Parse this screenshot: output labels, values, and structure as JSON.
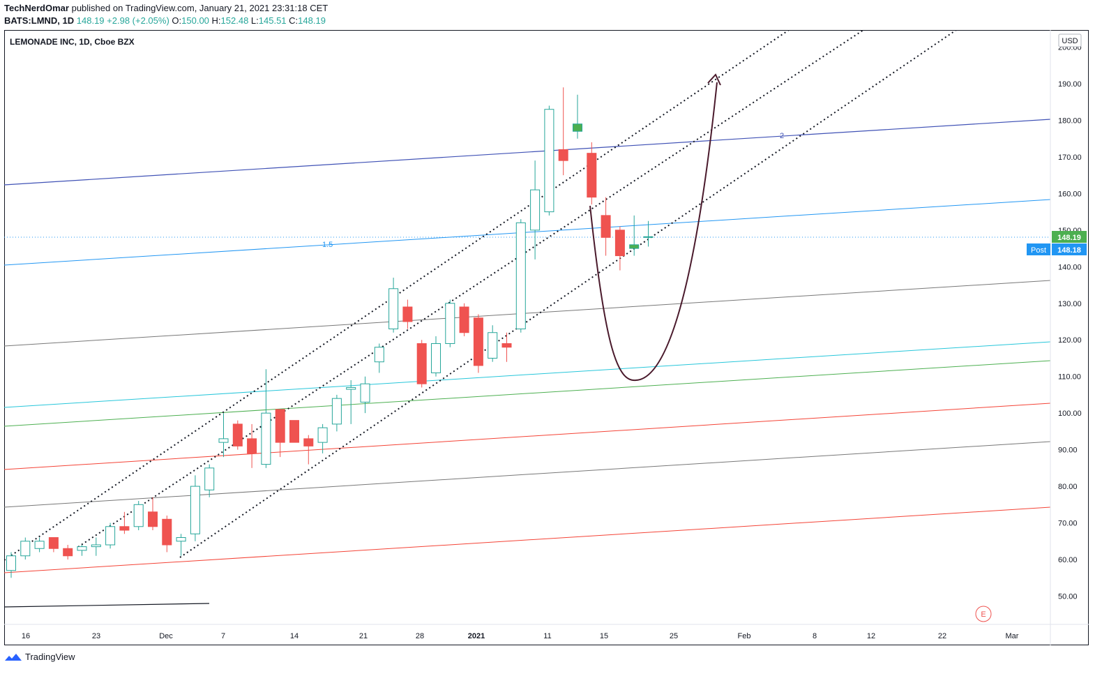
{
  "header": {
    "author": "TechNerdOmar",
    "published_text": "published on TradingView.com, January 21, 2021 23:31:18 CET",
    "symbol": "BATS:LMND, 1D",
    "last": "148.19",
    "change": "+2.98 (+2.05%)",
    "o_label": "O:",
    "o": "150.00",
    "h_label": "H:",
    "h": "152.48",
    "l_label": "L:",
    "l": "145.51",
    "c_label": "C:",
    "c": "148.19"
  },
  "legend_title": "LEMONADE INC, 1D, Cboe BZX",
  "currency": "USD",
  "price_label": "148.19",
  "post_label": "Post",
  "post_price": "148.18",
  "footer_brand": "TradingView",
  "earnings_marker": "E",
  "colors": {
    "up": "#26a69a",
    "down": "#ef5350",
    "up_fill": "#4caf50",
    "price_badge": "#4caf50",
    "post_badge": "#2196f3"
  },
  "chart_data": {
    "type": "candlestick",
    "y_ticks": [
      "50.00",
      "60.00",
      "70.00",
      "80.00",
      "90.00",
      "100.00",
      "110.00",
      "120.00",
      "130.00",
      "140.00",
      "150.00",
      "160.00",
      "170.00",
      "180.00",
      "190.00",
      "200.00"
    ],
    "x_ticks": [
      "16",
      "23",
      "Dec",
      "7",
      "14",
      "21",
      "28",
      "2021",
      "11",
      "15",
      "25",
      "Feb",
      "8",
      "12",
      "22",
      "Mar"
    ],
    "fib_labels": [
      {
        "text": "1.5"
      },
      {
        "text": "2"
      }
    ],
    "candles": [
      {
        "o": 57,
        "h": 62,
        "l": 55,
        "c": 61
      },
      {
        "o": 61,
        "h": 66,
        "l": 60,
        "c": 65
      },
      {
        "o": 63,
        "h": 66,
        "l": 62,
        "c": 65
      },
      {
        "o": 66,
        "h": 66,
        "l": 62,
        "c": 63
      },
      {
        "o": 63,
        "h": 64,
        "l": 60,
        "c": 61
      },
      {
        "o": 62.5,
        "h": 64,
        "l": 61,
        "c": 63.5
      },
      {
        "o": 63.5,
        "h": 66,
        "l": 61,
        "c": 64
      },
      {
        "o": 64,
        "h": 70,
        "l": 63,
        "c": 69
      },
      {
        "o": 69,
        "h": 73,
        "l": 67,
        "c": 68
      },
      {
        "o": 69,
        "h": 76,
        "l": 68,
        "c": 75
      },
      {
        "o": 73,
        "h": 77,
        "l": 68,
        "c": 69
      },
      {
        "o": 71,
        "h": 72,
        "l": 62,
        "c": 64
      },
      {
        "o": 65,
        "h": 67,
        "l": 61,
        "c": 66
      },
      {
        "o": 67,
        "h": 83,
        "l": 65,
        "c": 80
      },
      {
        "o": 79,
        "h": 86,
        "l": 77,
        "c": 85
      },
      {
        "o": 92,
        "h": 100,
        "l": 88,
        "c": 93
      },
      {
        "o": 97,
        "h": 98,
        "l": 90,
        "c": 91
      },
      {
        "o": 93,
        "h": 97,
        "l": 85,
        "c": 89
      },
      {
        "o": 86,
        "h": 112,
        "l": 85,
        "c": 100
      },
      {
        "o": 101,
        "h": 101,
        "l": 88,
        "c": 92
      },
      {
        "o": 98,
        "h": 98,
        "l": 92,
        "c": 92
      },
      {
        "o": 93,
        "h": 94,
        "l": 86,
        "c": 91
      },
      {
        "o": 92,
        "h": 97,
        "l": 89,
        "c": 96
      },
      {
        "o": 97,
        "h": 105,
        "l": 95,
        "c": 104
      },
      {
        "o": 106.5,
        "h": 109,
        "l": 97,
        "c": 107
      },
      {
        "o": 103,
        "h": 110,
        "l": 100,
        "c": 108
      },
      {
        "o": 114,
        "h": 119,
        "l": 111,
        "c": 118
      },
      {
        "o": 123,
        "h": 137,
        "l": 122,
        "c": 134
      },
      {
        "o": 129,
        "h": 131,
        "l": 123,
        "c": 125
      },
      {
        "o": 119,
        "h": 120,
        "l": 107,
        "c": 108
      },
      {
        "o": 111,
        "h": 121,
        "l": 110,
        "c": 119
      },
      {
        "o": 119,
        "h": 131,
        "l": 118,
        "c": 130
      },
      {
        "o": 129,
        "h": 130,
        "l": 121,
        "c": 122
      },
      {
        "o": 126,
        "h": 127,
        "l": 111,
        "c": 113
      },
      {
        "o": 115,
        "h": 124,
        "l": 114,
        "c": 122
      },
      {
        "o": 119,
        "h": 122,
        "l": 114,
        "c": 118
      },
      {
        "o": 123,
        "h": 153,
        "l": 122,
        "c": 152
      },
      {
        "o": 150,
        "h": 169,
        "l": 142,
        "c": 161
      },
      {
        "o": 155,
        "h": 184,
        "l": 154,
        "c": 183
      },
      {
        "o": 172,
        "h": 189,
        "l": 165,
        "c": 169
      },
      {
        "o": 177,
        "h": 187,
        "l": 175,
        "c": 179
      },
      {
        "o": 171,
        "h": 174,
        "l": 157,
        "c": 159
      },
      {
        "o": 154,
        "h": 159,
        "l": 143,
        "c": 148
      },
      {
        "o": 150,
        "h": 151,
        "l": 139,
        "c": 143
      },
      {
        "o": 145,
        "h": 154,
        "l": 143,
        "c": 146
      },
      {
        "o": 148,
        "h": 152.5,
        "l": 145.5,
        "c": 148.2
      }
    ]
  }
}
